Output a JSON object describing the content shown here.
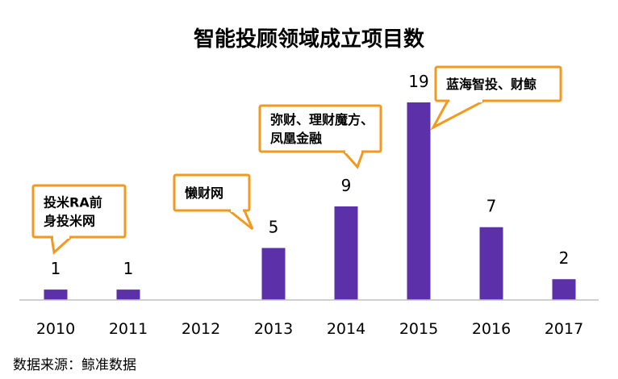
{
  "chart_data": {
    "type": "bar",
    "title": "智能投顾领域成立项目数",
    "xlabel": "",
    "ylabel": "",
    "categories": [
      "2010",
      "2011",
      "2012",
      "2013",
      "2014",
      "2015",
      "2016",
      "2017"
    ],
    "values": [
      1,
      1,
      0,
      5,
      9,
      19,
      7,
      2
    ],
    "ylim": [
      0,
      19
    ],
    "grid": false,
    "bar_color": "#5B30A8",
    "callout_border_color": "#F39A1E",
    "annotations": [
      {
        "category": "2010",
        "lines": [
          "投米RA前",
          "身投米网"
        ]
      },
      {
        "category": "2013",
        "lines": [
          "懒财网"
        ]
      },
      {
        "category": "2014",
        "lines": [
          "弥财、理财魔方、",
          "凤凰金融"
        ]
      },
      {
        "category": "2015",
        "lines": [
          "蓝海智投、财鲸"
        ]
      }
    ]
  },
  "source_note": "数据来源：鲸准数据"
}
